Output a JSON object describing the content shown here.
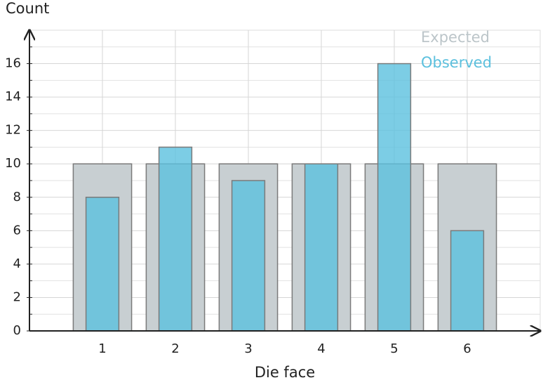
{
  "chart_data": {
    "type": "bar",
    "xlabel": "Die face",
    "ylabel": "Count",
    "x": [
      1,
      2,
      3,
      4,
      5,
      6
    ],
    "series": [
      {
        "name": "Expected",
        "color": "#c8cfd2",
        "values": [
          10,
          10,
          10,
          10,
          10,
          10
        ]
      },
      {
        "name": "Observed",
        "color": "#5bc0de",
        "values": [
          8,
          11,
          9,
          10,
          16,
          6
        ]
      }
    ],
    "xlim": [
      0,
      7
    ],
    "xticks": [
      1,
      2,
      3,
      4,
      5,
      6
    ],
    "ylim": [
      0,
      18
    ],
    "yticks": [
      0,
      2,
      4,
      6,
      8,
      10,
      12,
      14,
      16
    ],
    "minor_yticks": [
      1,
      3,
      5,
      7,
      9,
      11,
      13,
      15,
      17
    ],
    "grid": true,
    "legend": "upper right"
  }
}
